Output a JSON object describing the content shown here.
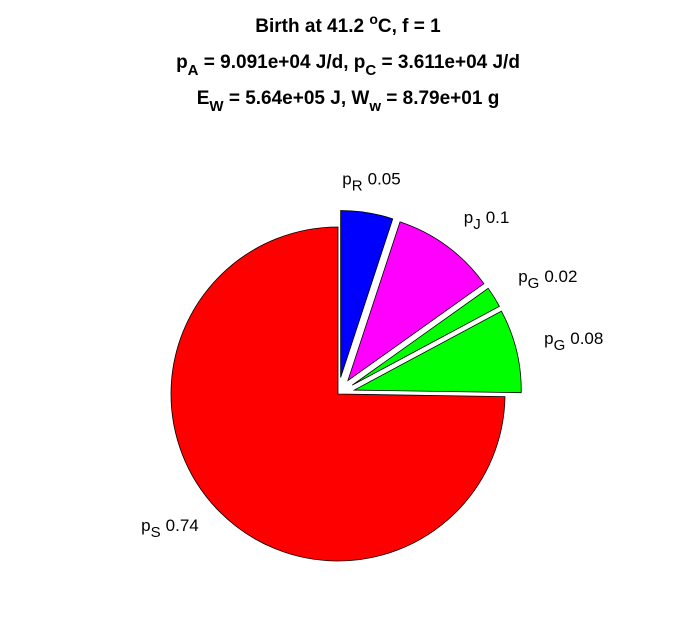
{
  "chart_data": {
    "type": "pie",
    "title": [
      [
        {
          "text": "Birth at 41.2 "
        },
        {
          "sup": "o"
        },
        {
          "text": "C, f = 1"
        }
      ],
      [
        {
          "text": "p"
        },
        {
          "sub": "A"
        },
        {
          "text": " = 9.091e+04 J/d, p"
        },
        {
          "sub": "C"
        },
        {
          "text": " = 3.611e+04 J/d"
        }
      ],
      [
        {
          "text": "E"
        },
        {
          "sub": "W"
        },
        {
          "text": " = 5.64e+05 J, W"
        },
        {
          "sub": "w"
        },
        {
          "text": " = 8.79e+01 g"
        }
      ]
    ],
    "labels": [
      {
        "text": "p",
        "sub": "S"
      },
      {
        "text": "p",
        "sub": "G"
      },
      {
        "text": "p",
        "sub": "G"
      },
      {
        "text": "p",
        "sub": "J"
      },
      {
        "text": "p",
        "sub": "R"
      }
    ],
    "values": [
      0.74,
      0.08,
      0.02,
      0.1,
      0.05
    ],
    "colors": [
      "#ff0000",
      "#00ff00",
      "#00ff00",
      "#ff00ff",
      "#0000ff"
    ],
    "explode": [
      false,
      true,
      true,
      true,
      true
    ]
  }
}
